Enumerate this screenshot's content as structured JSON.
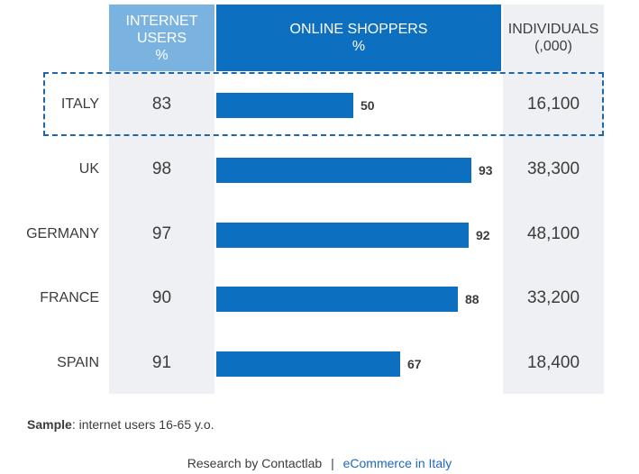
{
  "headers": {
    "internet_users": [
      "INTERNET",
      "USERS",
      "%"
    ],
    "online_shoppers": [
      "ONLINE SHOPPERS",
      "%"
    ],
    "individuals": [
      "INDIVIDUALS",
      "(,000)"
    ]
  },
  "chart_data": {
    "type": "bar",
    "orientation": "horizontal",
    "categories": [
      "ITALY",
      "UK",
      "GERMANY",
      "FRANCE",
      "SPAIN"
    ],
    "series": [
      {
        "name": "ONLINE SHOPPERS %",
        "values": [
          50,
          93,
          92,
          88,
          67
        ]
      }
    ],
    "table_columns": {
      "internet_users_pct": [
        83,
        98,
        97,
        90,
        91
      ],
      "individuals_thousands": [
        "16,100",
        "38,300",
        "48,100",
        "33,200",
        "18,400"
      ]
    },
    "xlim": [
      0,
      100
    ],
    "highlighted_category": "ITALY",
    "colors": {
      "bar": "#0d6fc0",
      "header_light": "#7ab3e0",
      "header_dark": "#0d6fc0",
      "column_bg": "#eef0f4"
    }
  },
  "rows": [
    {
      "country": "ITALY",
      "internet": "83",
      "shoppers": "50",
      "individuals": "16,100"
    },
    {
      "country": "UK",
      "internet": "98",
      "shoppers": "93",
      "individuals": "38,300"
    },
    {
      "country": "GERMANY",
      "internet": "97",
      "shoppers": "92",
      "individuals": "48,100"
    },
    {
      "country": "FRANCE",
      "internet": "90",
      "shoppers": "88",
      "individuals": "33,200"
    },
    {
      "country": "SPAIN",
      "internet": "91",
      "shoppers": "67",
      "individuals": "18,400"
    }
  ],
  "note": {
    "label": "Sample",
    "text": ": internet users 16-65 y.o."
  },
  "footer": {
    "left": "Research by Contactlab",
    "separator": "|",
    "right": "eCommerce in Italy"
  }
}
